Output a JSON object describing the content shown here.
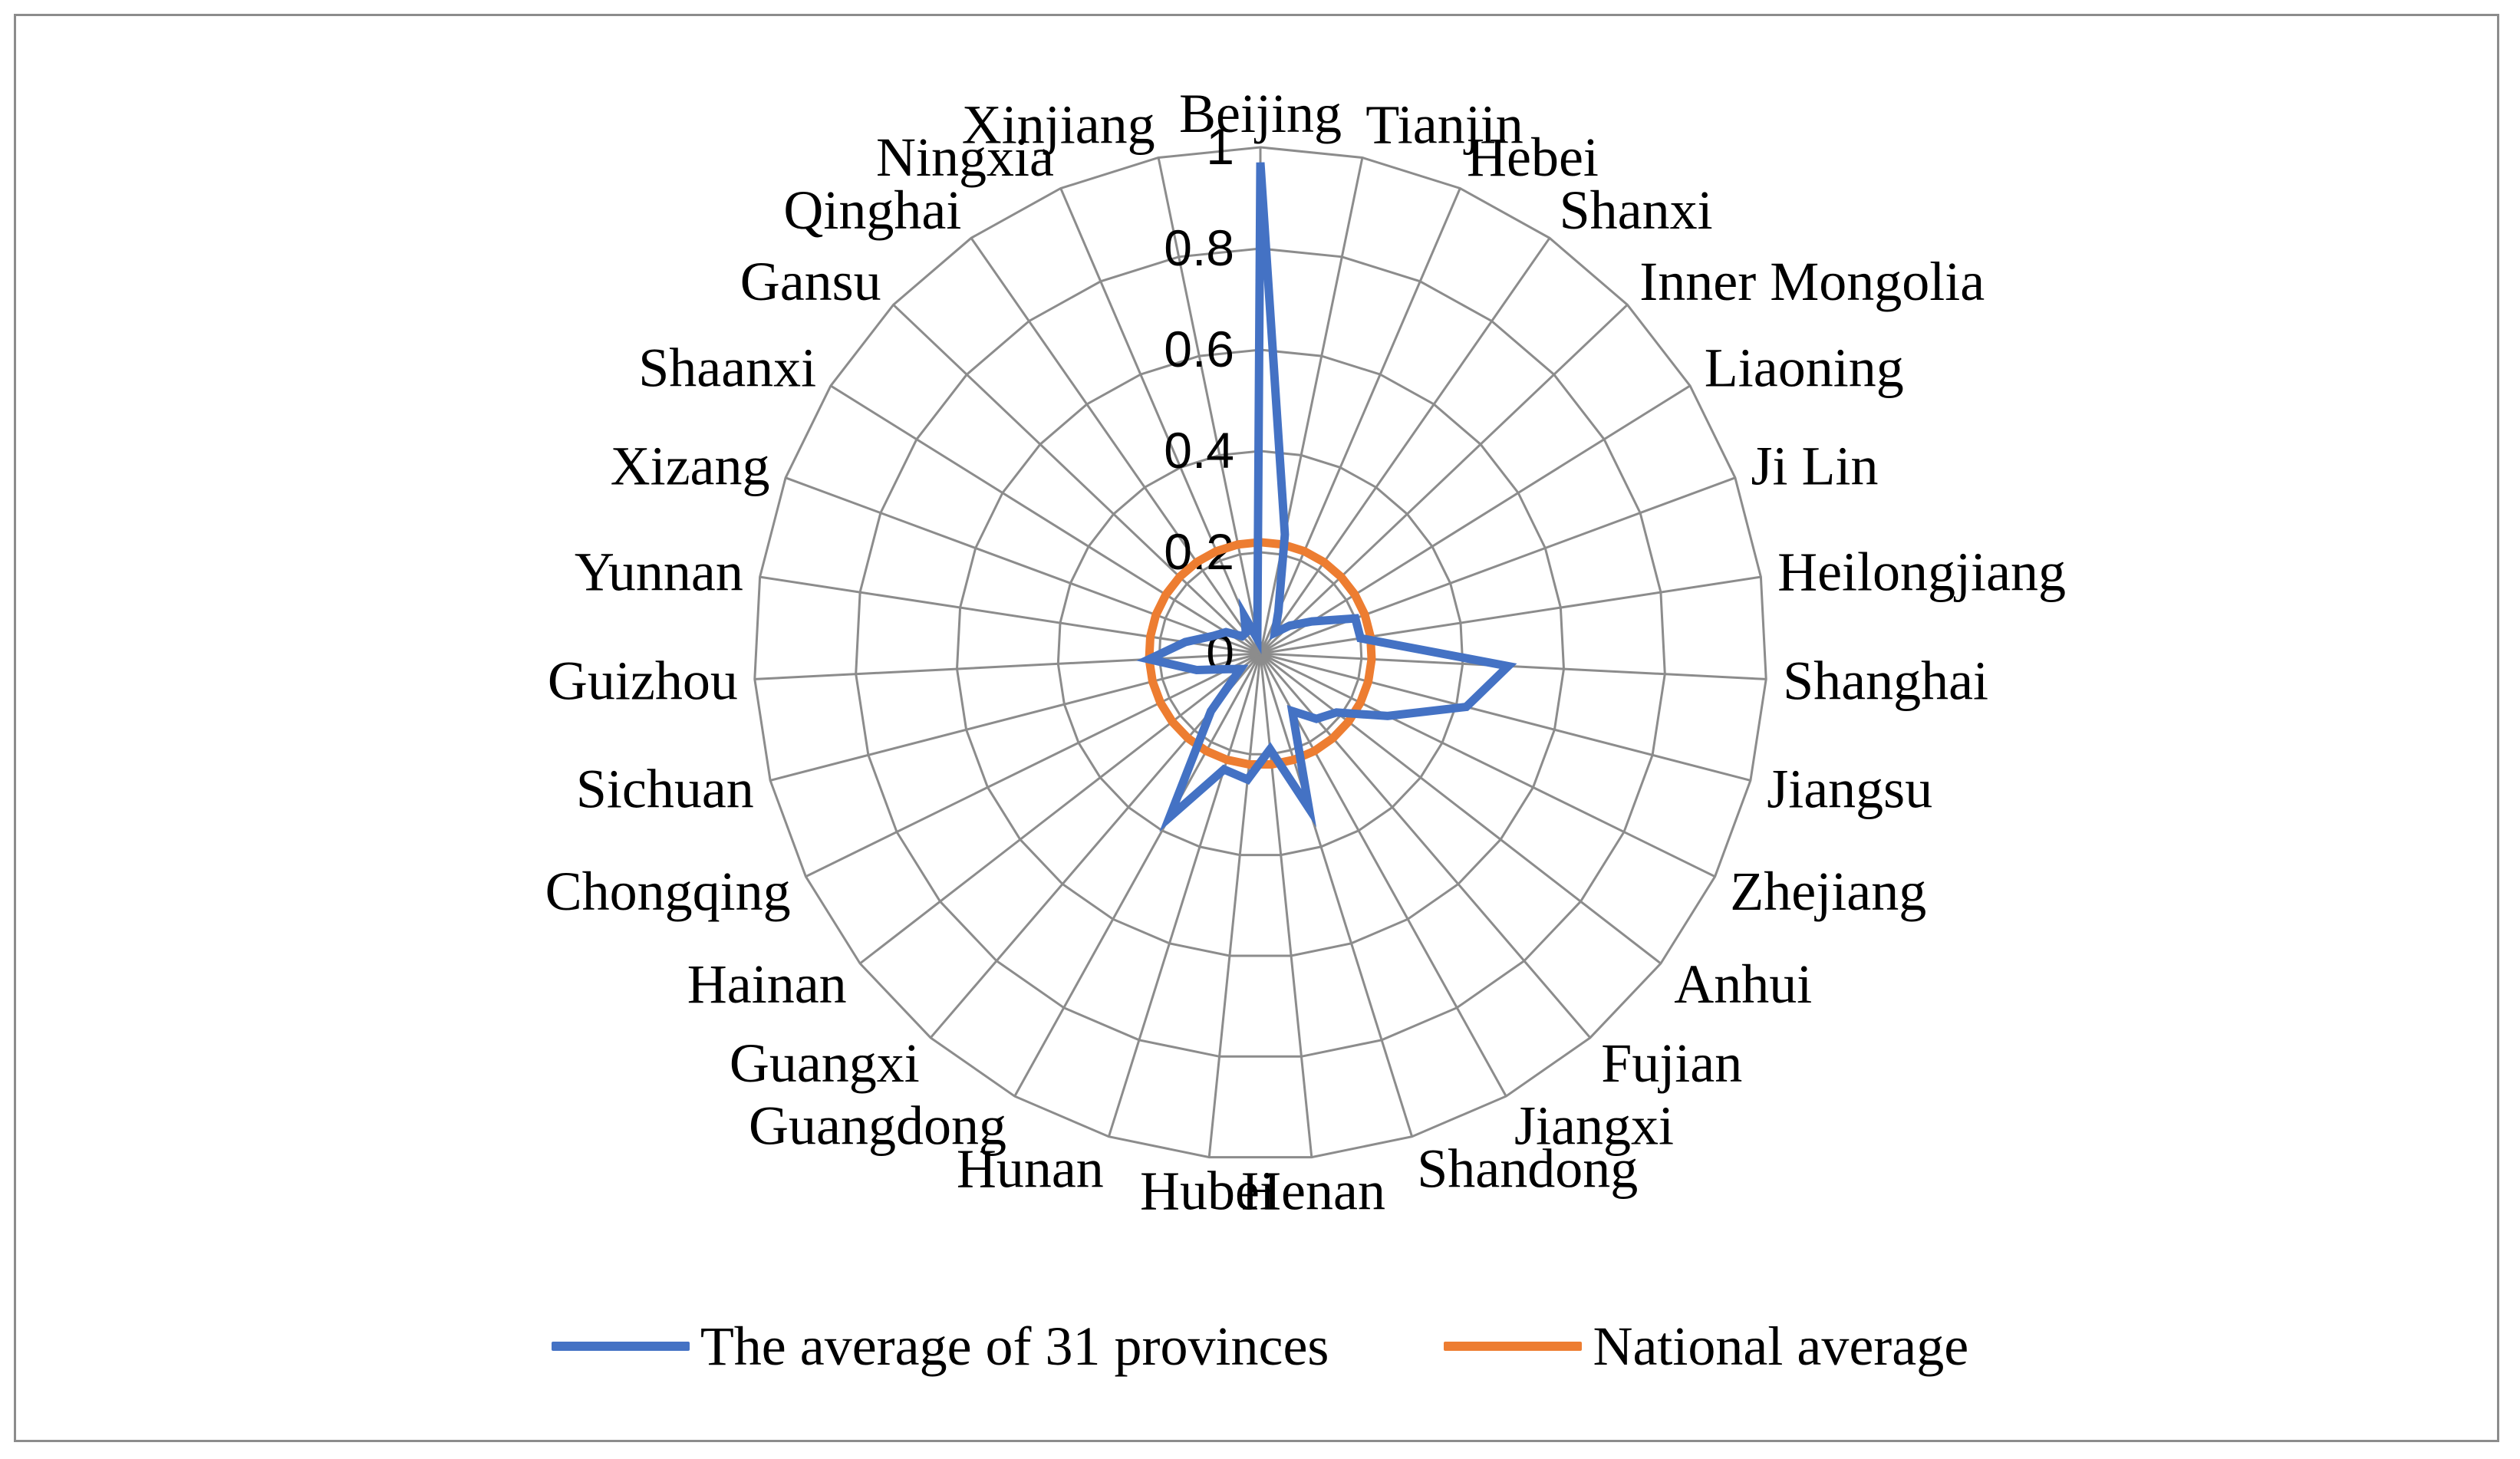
{
  "chart_data": {
    "type": "radar",
    "categories": [
      "Beijing",
      "Tianjin",
      "Hebei",
      "Shanxi",
      "Inner Mongolia",
      "Liaoning",
      "Ji Lin",
      "Heilongjiang",
      "Shanghai",
      "Jiangsu",
      "Zhejiang",
      "Anhui",
      "Fujian",
      "Jiangxi",
      "Shandong",
      "Henan",
      "Hubei",
      "Hunan",
      "Guangdong",
      "Guangxi",
      "Hainan",
      "Chongqing",
      "Sichuan",
      "Guizhou",
      "Yunnan",
      "Xizang",
      "Shaanxi",
      "Gansu",
      "Qinghai",
      "Ningxia",
      "Xinjiang"
    ],
    "series": [
      {
        "name": "The average of 31 provinces",
        "color": "#4472C4",
        "values": [
          0.97,
          0.24,
          0.09,
          0.05,
          0.08,
          0.12,
          0.2,
          0.2,
          0.49,
          0.42,
          0.28,
          0.19,
          0.17,
          0.13,
          0.32,
          0.19,
          0.25,
          0.24,
          0.37,
          0.15,
          0.05,
          0.07,
          0.13,
          0.22,
          0.15,
          0.1,
          0.08,
          0.05,
          0.05,
          0.08,
          0.03
        ]
      },
      {
        "name": "National average",
        "color": "#ED7D31",
        "values": [
          0.22,
          0.22,
          0.22,
          0.22,
          0.22,
          0.22,
          0.22,
          0.22,
          0.22,
          0.22,
          0.22,
          0.22,
          0.22,
          0.22,
          0.22,
          0.22,
          0.22,
          0.22,
          0.22,
          0.22,
          0.22,
          0.22,
          0.22,
          0.22,
          0.22,
          0.22,
          0.22,
          0.22,
          0.22,
          0.22,
          0.22
        ]
      }
    ],
    "radial_ticks": [
      0,
      0.2,
      0.4,
      0.6,
      0.8,
      1
    ],
    "tick_labels": [
      "0",
      "0.2",
      "0.4",
      "0.6",
      "0.8",
      "1"
    ],
    "rlim": [
      0,
      1
    ],
    "grid": true,
    "legend_position": "bottom",
    "grid_color": "#8c8c8c"
  },
  "legend": {
    "items": [
      {
        "label": "The average of 31 provinces",
        "color": "#4472C4"
      },
      {
        "label": "National average",
        "color": "#ED7D31"
      }
    ]
  }
}
